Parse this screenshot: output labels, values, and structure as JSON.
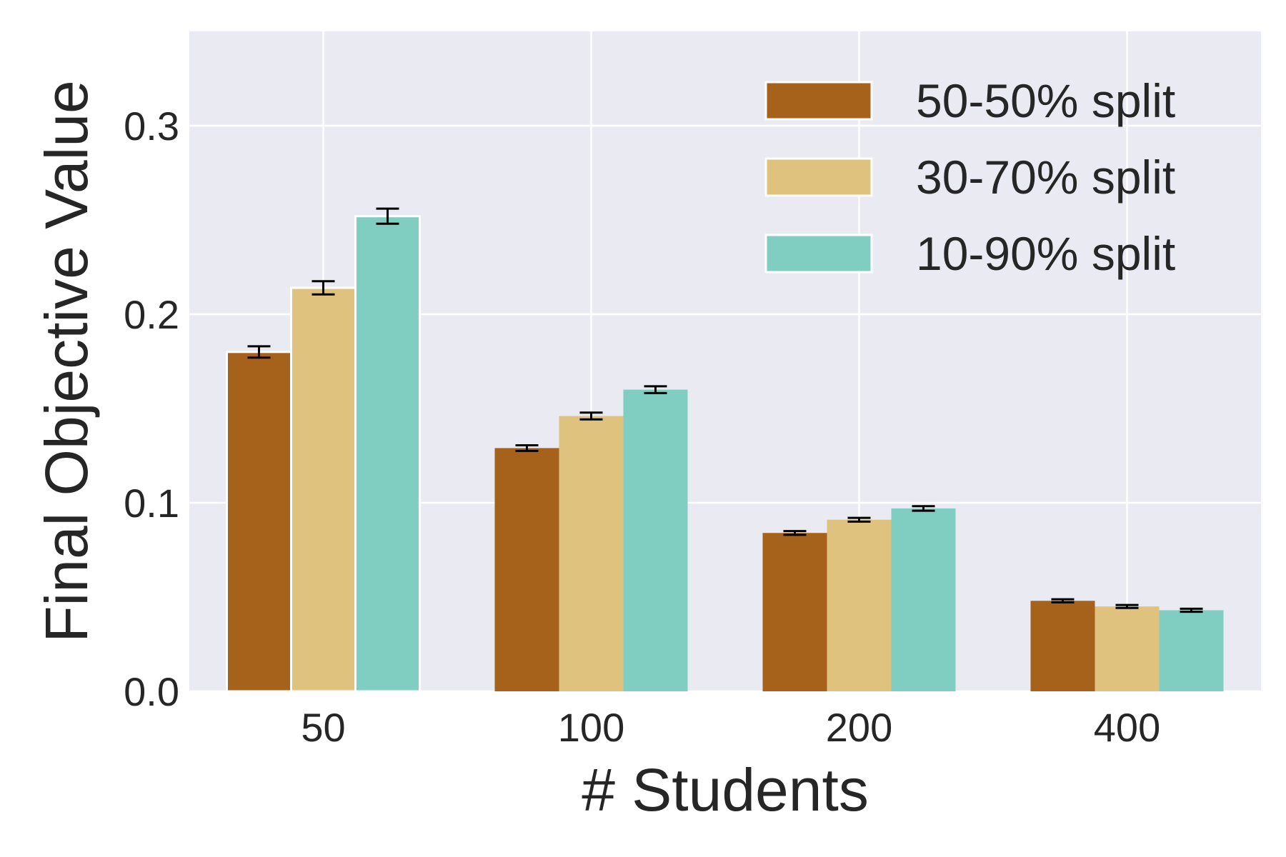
{
  "chart_data": {
    "type": "bar",
    "title": "",
    "xlabel": "# Students",
    "ylabel": "Final Objective Value",
    "categories": [
      "50",
      "100",
      "200",
      "400"
    ],
    "ylim": [
      0,
      0.35
    ],
    "yticks": [
      0.0,
      0.1,
      0.2,
      0.3
    ],
    "ytick_labels": [
      "0.0",
      "0.1",
      "0.2",
      "0.3"
    ],
    "grid": true,
    "legend_position": "top-right",
    "background_color": "#EAEAF2",
    "series": [
      {
        "name": "50-50% split",
        "color": "#A6611A",
        "values": [
          0.18,
          0.129,
          0.084,
          0.048
        ],
        "errors": [
          0.003,
          0.0015,
          0.001,
          0.0008
        ]
      },
      {
        "name": "30-70% split",
        "color": "#DFC27D",
        "values": [
          0.214,
          0.146,
          0.091,
          0.045
        ],
        "errors": [
          0.0035,
          0.0018,
          0.001,
          0.0008
        ]
      },
      {
        "name": "10-90% split",
        "color": "#80CDC1",
        "values": [
          0.252,
          0.16,
          0.097,
          0.043
        ],
        "errors": [
          0.004,
          0.0018,
          0.0012,
          0.0008
        ]
      }
    ]
  }
}
